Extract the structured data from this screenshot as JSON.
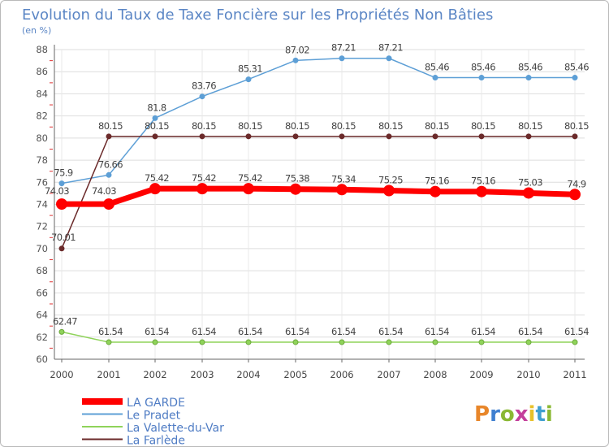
{
  "chart_data": {
    "type": "line",
    "title": "Evolution du Taux de Taxe Foncière sur les Propriétés Non Bâties",
    "ylabel": "(en %)",
    "ylim": [
      60,
      88
    ],
    "yticks": [
      60,
      62,
      64,
      66,
      68,
      70,
      72,
      74,
      76,
      78,
      80,
      82,
      84,
      86,
      88
    ],
    "x": [
      "2000",
      "2001",
      "2002",
      "2003",
      "2004",
      "2005",
      "2006",
      "2007",
      "2008",
      "2009",
      "2010",
      "2011"
    ],
    "grid": true,
    "legend_position": "bottom-left",
    "series": [
      {
        "name": "LA GARDE",
        "color": "#ff0000",
        "values": [
          74.03,
          74.03,
          75.42,
          75.42,
          75.42,
          75.38,
          75.34,
          75.25,
          75.16,
          75.16,
          75.03,
          74.9
        ],
        "labels": [
          "74.03",
          "74.03",
          "75.42",
          "75.42",
          "75.42",
          "75.38",
          "75.34",
          "75.25",
          "75.16",
          "75.16",
          "75.03",
          "74.9"
        ]
      },
      {
        "name": "Le Pradet",
        "color": "#5d9fd6",
        "values": [
          75.9,
          76.66,
          81.8,
          83.76,
          85.31,
          87.02,
          87.21,
          87.21,
          85.46,
          85.46,
          85.46,
          85.46
        ],
        "labels": [
          "75.9",
          "76.66",
          "81.8",
          "83.76",
          "85.31",
          "87.02",
          "87.21",
          "87.21",
          "85.46",
          "85.46",
          "85.46",
          "85.46"
        ]
      },
      {
        "name": "La Valette-du-Var",
        "color": "#8fd35a",
        "values": [
          62.47,
          61.54,
          61.54,
          61.54,
          61.54,
          61.54,
          61.54,
          61.54,
          61.54,
          61.54,
          61.54,
          61.54
        ],
        "labels": [
          "62.47",
          "61.54",
          "61.54",
          "61.54",
          "61.54",
          "61.54",
          "61.54",
          "61.54",
          "61.54",
          "61.54",
          "61.54",
          "61.54"
        ]
      },
      {
        "name": "La Farlède",
        "color": "#6b2a2a",
        "values": [
          70.01,
          80.15,
          80.15,
          80.15,
          80.15,
          80.15,
          80.15,
          80.15,
          80.15,
          80.15,
          80.15,
          80.15
        ],
        "labels": [
          "70.01",
          "80.15",
          "80.15",
          "80.15",
          "80.15",
          "80.15",
          "80.15",
          "80.15",
          "80.15",
          "80.15",
          "80.15",
          "80.15"
        ]
      }
    ]
  },
  "logo": {
    "text": "Proxiti",
    "letter_colors": [
      "#e8862a",
      "#3f7fd0",
      "#8ab833",
      "#c43f9b",
      "#e8c12a",
      "#3f9fd0",
      "#8ab833"
    ]
  }
}
